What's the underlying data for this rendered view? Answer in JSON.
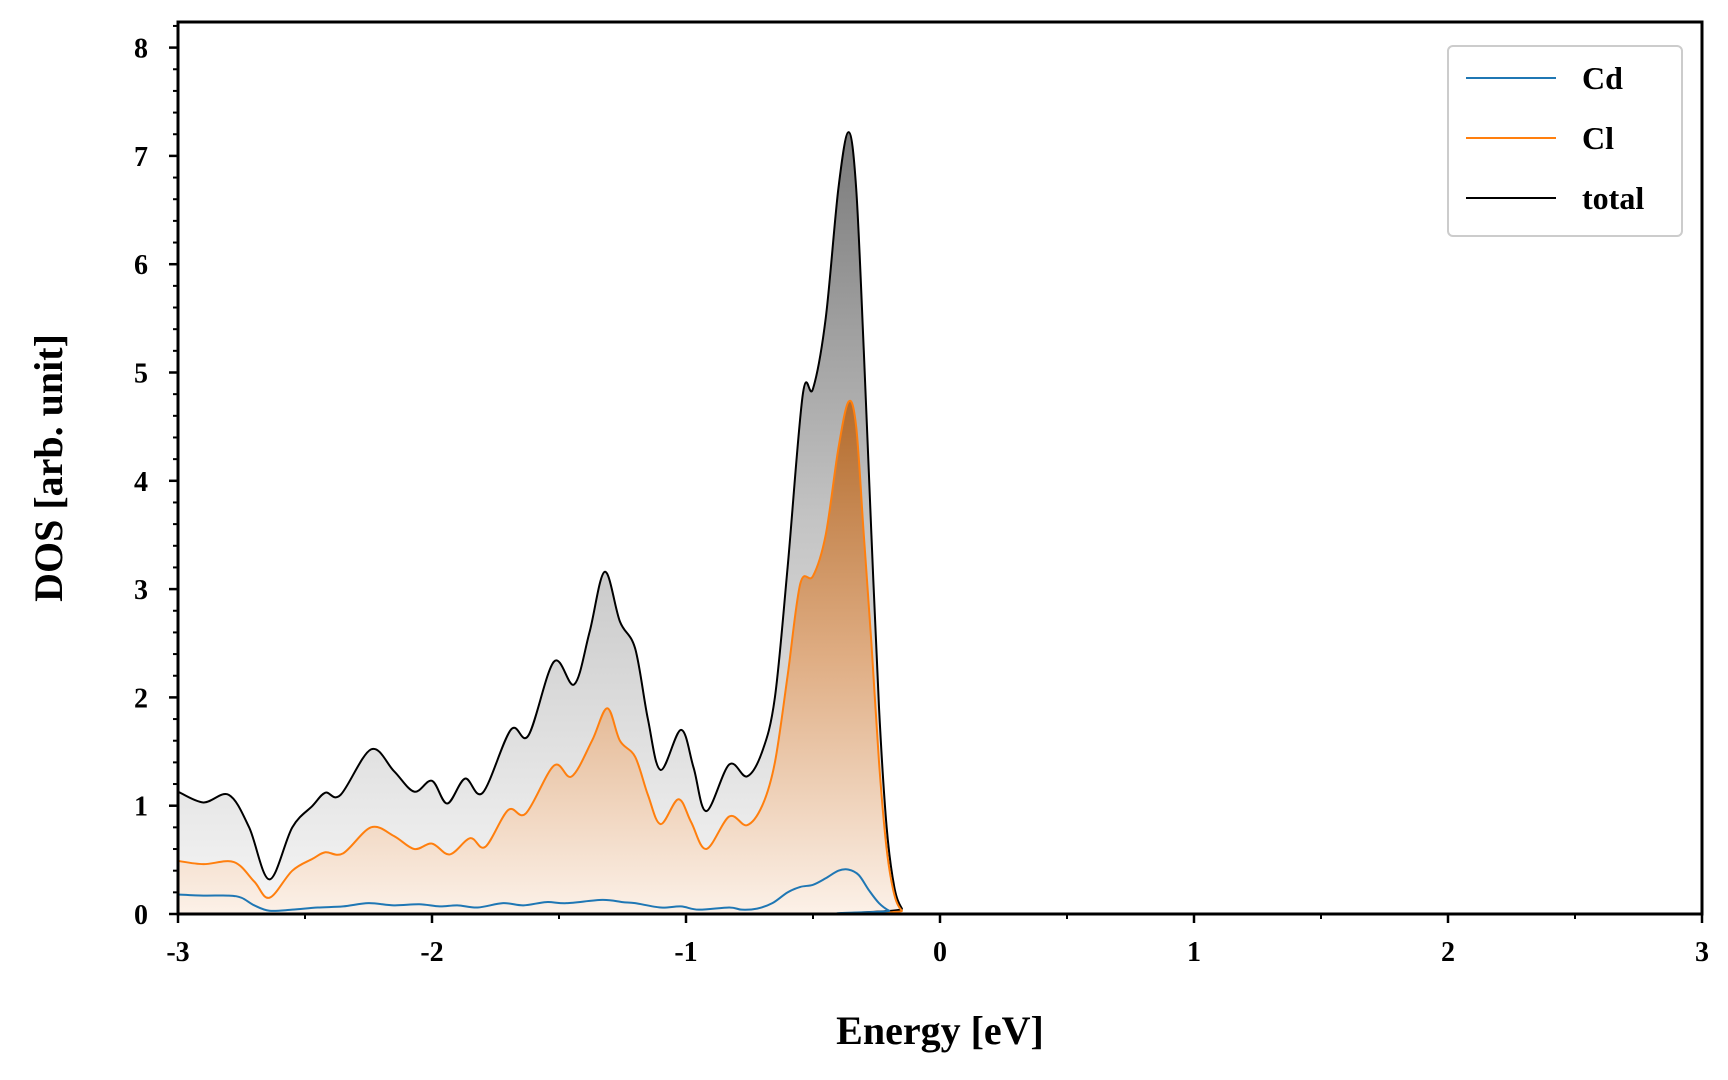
{
  "chart_data": {
    "type": "area",
    "title": "",
    "xlabel": "Energy [eV]",
    "ylabel": "DOS [arb. unit]",
    "xlim": [
      -3,
      3
    ],
    "ylim": [
      0,
      8.2
    ],
    "x_ticks": [
      "-3",
      "-2",
      "-1",
      "0",
      "1",
      "2",
      "3"
    ],
    "y_ticks": [
      "0",
      "1",
      "2",
      "3",
      "4",
      "5",
      "6",
      "7",
      "8"
    ],
    "grid": false,
    "legend_position": "top-right",
    "series": [
      {
        "name": "Cd",
        "color": "#1f77b4",
        "filled": false,
        "points": [
          [
            -3.0,
            0.18
          ],
          [
            -2.9,
            0.17
          ],
          [
            -2.8,
            0.17
          ],
          [
            -2.75,
            0.15
          ],
          [
            -2.7,
            0.08
          ],
          [
            -2.64,
            0.03
          ],
          [
            -2.55,
            0.04
          ],
          [
            -2.45,
            0.06
          ],
          [
            -2.35,
            0.07
          ],
          [
            -2.25,
            0.1
          ],
          [
            -2.15,
            0.08
          ],
          [
            -2.05,
            0.09
          ],
          [
            -1.97,
            0.07
          ],
          [
            -1.9,
            0.08
          ],
          [
            -1.82,
            0.06
          ],
          [
            -1.72,
            0.1
          ],
          [
            -1.64,
            0.08
          ],
          [
            -1.55,
            0.11
          ],
          [
            -1.47,
            0.1
          ],
          [
            -1.33,
            0.13
          ],
          [
            -1.25,
            0.11
          ],
          [
            -1.2,
            0.1
          ],
          [
            -1.1,
            0.06
          ],
          [
            -1.02,
            0.07
          ],
          [
            -0.95,
            0.04
          ],
          [
            -0.83,
            0.06
          ],
          [
            -0.78,
            0.04
          ],
          [
            -0.72,
            0.05
          ],
          [
            -0.66,
            0.1
          ],
          [
            -0.6,
            0.2
          ],
          [
            -0.55,
            0.25
          ],
          [
            -0.5,
            0.27
          ],
          [
            -0.45,
            0.33
          ],
          [
            -0.4,
            0.4
          ],
          [
            -0.36,
            0.41
          ],
          [
            -0.32,
            0.36
          ],
          [
            -0.28,
            0.22
          ],
          [
            -0.24,
            0.1
          ],
          [
            -0.2,
            0.03
          ],
          [
            -0.16,
            0.0
          ],
          [
            3.0,
            0.0
          ]
        ]
      },
      {
        "name": "Cl",
        "color": "#ff7f0e",
        "filled": true,
        "points": [
          [
            -3.0,
            0.49
          ],
          [
            -2.9,
            0.46
          ],
          [
            -2.78,
            0.48
          ],
          [
            -2.7,
            0.3
          ],
          [
            -2.64,
            0.15
          ],
          [
            -2.55,
            0.4
          ],
          [
            -2.47,
            0.51
          ],
          [
            -2.42,
            0.57
          ],
          [
            -2.35,
            0.56
          ],
          [
            -2.24,
            0.8
          ],
          [
            -2.15,
            0.72
          ],
          [
            -2.07,
            0.6
          ],
          [
            -2.0,
            0.65
          ],
          [
            -1.93,
            0.55
          ],
          [
            -1.85,
            0.7
          ],
          [
            -1.79,
            0.62
          ],
          [
            -1.7,
            0.96
          ],
          [
            -1.63,
            0.93
          ],
          [
            -1.52,
            1.37
          ],
          [
            -1.45,
            1.27
          ],
          [
            -1.37,
            1.6
          ],
          [
            -1.31,
            1.9
          ],
          [
            -1.26,
            1.6
          ],
          [
            -1.2,
            1.45
          ],
          [
            -1.15,
            1.1
          ],
          [
            -1.1,
            0.83
          ],
          [
            -1.03,
            1.06
          ],
          [
            -0.98,
            0.85
          ],
          [
            -0.92,
            0.6
          ],
          [
            -0.83,
            0.9
          ],
          [
            -0.76,
            0.82
          ],
          [
            -0.7,
            1.0
          ],
          [
            -0.65,
            1.4
          ],
          [
            -0.6,
            2.2
          ],
          [
            -0.55,
            3.05
          ],
          [
            -0.5,
            3.12
          ],
          [
            -0.45,
            3.5
          ],
          [
            -0.4,
            4.3
          ],
          [
            -0.36,
            4.73
          ],
          [
            -0.33,
            4.5
          ],
          [
            -0.3,
            3.5
          ],
          [
            -0.27,
            2.5
          ],
          [
            -0.24,
            1.4
          ],
          [
            -0.21,
            0.6
          ],
          [
            -0.18,
            0.18
          ],
          [
            -0.15,
            0.03
          ],
          [
            -0.12,
            0.0
          ],
          [
            3.0,
            0.0
          ]
        ]
      },
      {
        "name": "total",
        "color": "#000000",
        "filled": true,
        "points": [
          [
            -3.0,
            1.13
          ],
          [
            -2.9,
            1.03
          ],
          [
            -2.8,
            1.1
          ],
          [
            -2.72,
            0.8
          ],
          [
            -2.64,
            0.32
          ],
          [
            -2.55,
            0.8
          ],
          [
            -2.47,
            1.0
          ],
          [
            -2.42,
            1.12
          ],
          [
            -2.36,
            1.1
          ],
          [
            -2.24,
            1.52
          ],
          [
            -2.15,
            1.32
          ],
          [
            -2.07,
            1.13
          ],
          [
            -2.0,
            1.23
          ],
          [
            -1.94,
            1.02
          ],
          [
            -1.87,
            1.25
          ],
          [
            -1.8,
            1.12
          ],
          [
            -1.69,
            1.7
          ],
          [
            -1.62,
            1.65
          ],
          [
            -1.52,
            2.33
          ],
          [
            -1.44,
            2.12
          ],
          [
            -1.38,
            2.6
          ],
          [
            -1.32,
            3.16
          ],
          [
            -1.26,
            2.7
          ],
          [
            -1.2,
            2.45
          ],
          [
            -1.15,
            1.8
          ],
          [
            -1.1,
            1.33
          ],
          [
            -1.02,
            1.7
          ],
          [
            -0.97,
            1.35
          ],
          [
            -0.92,
            0.95
          ],
          [
            -0.83,
            1.38
          ],
          [
            -0.76,
            1.27
          ],
          [
            -0.7,
            1.5
          ],
          [
            -0.65,
            2.0
          ],
          [
            -0.6,
            3.2
          ],
          [
            -0.54,
            4.8
          ],
          [
            -0.5,
            4.85
          ],
          [
            -0.45,
            5.5
          ],
          [
            -0.4,
            6.7
          ],
          [
            -0.36,
            7.22
          ],
          [
            -0.33,
            6.7
          ],
          [
            -0.3,
            5.2
          ],
          [
            -0.27,
            3.5
          ],
          [
            -0.24,
            1.9
          ],
          [
            -0.21,
            0.8
          ],
          [
            -0.18,
            0.25
          ],
          [
            -0.15,
            0.05
          ],
          [
            -0.12,
            0.0
          ],
          [
            3.0,
            0.0
          ]
        ]
      }
    ]
  }
}
